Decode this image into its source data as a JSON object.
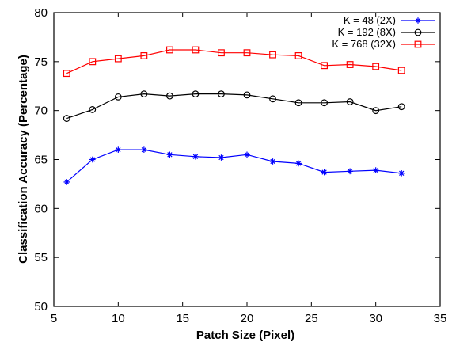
{
  "chart_data": {
    "type": "line",
    "xlabel": "Patch Size (Pixel)",
    "ylabel": "Classification Accuracy (Percentage)",
    "xlim": [
      5,
      35
    ],
    "ylim": [
      50,
      80
    ],
    "xticks": [
      "5",
      "10",
      "15",
      "20",
      "25",
      "30",
      "35"
    ],
    "yticks": [
      "50",
      "55",
      "60",
      "65",
      "70",
      "75",
      "80"
    ],
    "grid": false,
    "legend_position": "top-right",
    "x": [
      6,
      8,
      10,
      12,
      14,
      16,
      18,
      20,
      22,
      24,
      26,
      28,
      30,
      32
    ],
    "series": [
      {
        "name": "K = 48 (2X)",
        "color": "#0000ff",
        "marker": "asterisk",
        "values": [
          62.7,
          65.0,
          66.0,
          66.0,
          65.5,
          65.3,
          65.2,
          65.5,
          64.8,
          64.6,
          63.7,
          63.8,
          63.9,
          63.6
        ]
      },
      {
        "name": "K = 192 (8X)",
        "color": "#000000",
        "marker": "circle",
        "values": [
          69.2,
          70.1,
          71.4,
          71.7,
          71.5,
          71.7,
          71.7,
          71.6,
          71.2,
          70.8,
          70.8,
          70.9,
          70.0,
          70.4
        ]
      },
      {
        "name": "K = 768 (32X)",
        "color": "#ff0000",
        "marker": "square",
        "values": [
          73.8,
          75.0,
          75.3,
          75.6,
          76.2,
          76.2,
          75.9,
          75.9,
          75.7,
          75.6,
          74.6,
          74.7,
          74.5,
          74.1
        ]
      }
    ]
  }
}
